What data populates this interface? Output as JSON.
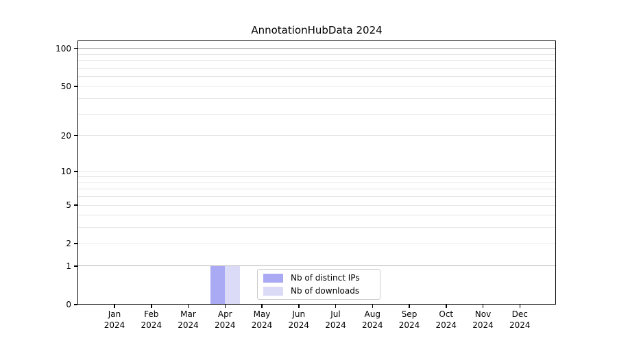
{
  "title": "AnnotationHubData 2024",
  "colors": {
    "background": "#ffffff",
    "axis": "#000000",
    "text": "#000000",
    "grid": "#e6e6e6",
    "grid_emphasis": "#b3b3b3",
    "legend_border": "#cccccc"
  },
  "chart_data": {
    "type": "bar",
    "title": "AnnotationHubData 2024",
    "categories": [
      "Jan",
      "Feb",
      "Mar",
      "Apr",
      "May",
      "Jun",
      "Jul",
      "Aug",
      "Sep",
      "Oct",
      "Nov",
      "Dec"
    ],
    "x_year": "2024",
    "series": [
      {
        "key": "distinct-ips",
        "name": "Nb of distinct IPs",
        "color": "#a9a9f4",
        "values": [
          0,
          0,
          0,
          1,
          0,
          0,
          0,
          0,
          0,
          0,
          0,
          0
        ]
      },
      {
        "key": "downloads",
        "name": "Nb of downloads",
        "color": "#dbdbf8",
        "values": [
          0,
          0,
          0,
          1,
          0,
          0,
          0,
          0,
          0,
          0,
          0,
          0
        ]
      }
    ],
    "yscale": "log1p",
    "ylim": [
      0,
      115
    ],
    "yticks": [
      0,
      1,
      2,
      5,
      10,
      20,
      50,
      100
    ],
    "grid_values": [
      1,
      2,
      3,
      4,
      5,
      6,
      7,
      8,
      9,
      10,
      20,
      30,
      40,
      50,
      60,
      70,
      80,
      90,
      100
    ],
    "emphasized_grid_values": [
      1,
      100
    ],
    "grid": "horizontal",
    "legend_position": "inside-bottom-center"
  }
}
